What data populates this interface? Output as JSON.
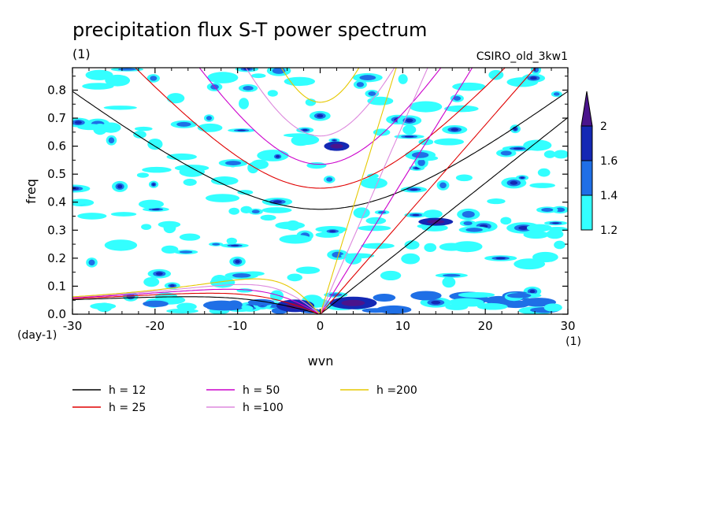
{
  "chart_data": {
    "type": "heatmap",
    "title": "precipitation flux S-T power spectrum",
    "model_label": "CSIRO_old_3kw1",
    "y_units": "(1)",
    "y_units_bottom": "(day-1)",
    "x_units": "(1)",
    "xlabel": "wvn",
    "ylabel": "freq",
    "xlim": [
      -30,
      30
    ],
    "ylim": [
      0,
      0.88
    ],
    "xticks": [
      -30,
      -20,
      -10,
      0,
      10,
      20,
      30
    ],
    "yticks": [
      0.0,
      0.1,
      0.2,
      0.3,
      0.4,
      0.5,
      0.6,
      0.7,
      0.8
    ],
    "xtick_labels": [
      "-30",
      "-20",
      "-10",
      "0",
      "10",
      "20",
      "30"
    ],
    "ytick_labels": [
      "0.0",
      "0.1",
      "0.2",
      "0.3",
      "0.4",
      "0.5",
      "0.6",
      "0.7",
      "0.8"
    ],
    "colorbar": {
      "levels": [
        1.2,
        1.4,
        1.6,
        2
      ],
      "level_labels": [
        "1.2",
        "1.4",
        "1.6",
        "2"
      ],
      "colors": [
        "#33ffff",
        "#1f6fe6",
        "#1428b4",
        "#4a148c"
      ]
    },
    "dispersion_curves": [
      {
        "label": "h = 12",
        "h": 12,
        "color": "#000000"
      },
      {
        "label": "h = 25",
        "h": 25,
        "color": "#e00000"
      },
      {
        "label": "h = 50",
        "h": 50,
        "color": "#cc00cc"
      },
      {
        "label": "h =100",
        "h": 100,
        "color": "#dd88dd"
      },
      {
        "label": "h =200",
        "h": 200,
        "color": "#e6c800"
      }
    ],
    "grid": false,
    "legend_position": "bottom-left"
  }
}
